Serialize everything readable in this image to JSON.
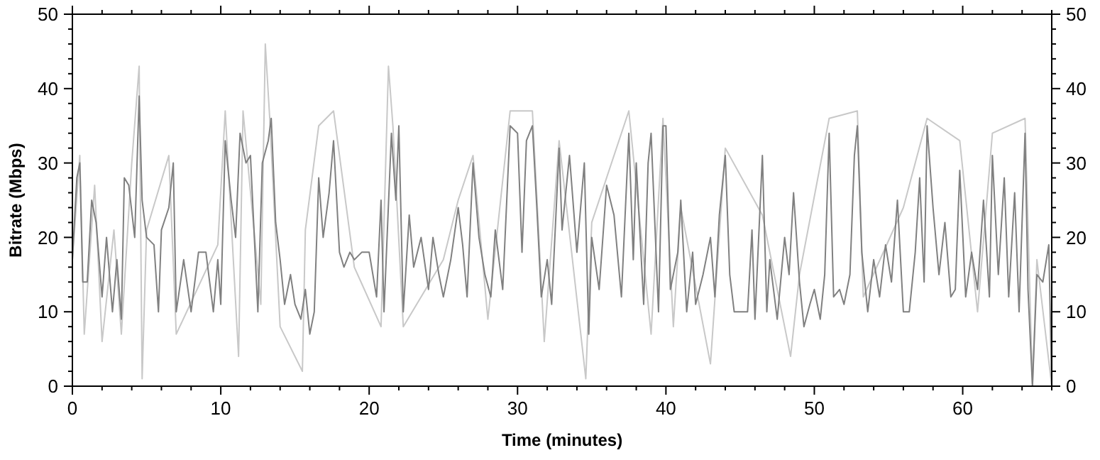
{
  "chart_data": {
    "type": "line",
    "xlabel": "Time (minutes)",
    "ylabel": "Bitrate (Mbps)",
    "xlim": [
      0,
      66
    ],
    "xticks": [
      0,
      10,
      20,
      30,
      40,
      50,
      60
    ],
    "ylim": [
      0,
      50
    ],
    "yticks": [
      0,
      10,
      20,
      30,
      40,
      50
    ],
    "y2lim": [
      0,
      50
    ],
    "y2ticks": [
      0,
      10,
      20,
      30,
      40,
      50
    ],
    "grid": false,
    "series": [
      {
        "color": "#c8c8c8",
        "x": [
          0,
          0.5,
          0.8,
          1.5,
          2,
          2.8,
          3.3,
          4,
          4.5,
          4.7,
          5,
          6.5,
          7,
          9.8,
          10.3,
          11.2,
          11.5,
          12.7,
          13,
          13.3,
          14,
          15.5,
          15.7,
          16.6,
          17.6,
          19,
          20.8,
          21.3,
          21.6,
          22.3,
          25,
          26,
          27,
          28,
          29.5,
          31,
          31.8,
          32.8,
          34.6,
          35,
          37.5,
          39,
          39.8,
          40.5,
          41,
          43,
          44,
          46.5,
          48.4,
          49,
          51,
          52.9,
          53.3,
          56,
          57.6,
          59.8,
          61,
          62,
          64.2,
          64.7,
          65,
          66
        ],
        "values": [
          17,
          31,
          7,
          27,
          6,
          21,
          7,
          30,
          43,
          1,
          21,
          31,
          7,
          19,
          37,
          4,
          37,
          11,
          46,
          36,
          8,
          2,
          21,
          35,
          37,
          16,
          8,
          43,
          35,
          8,
          17,
          25,
          31,
          9,
          37,
          37,
          6,
          33,
          1,
          22,
          37,
          7,
          36,
          8,
          24,
          3,
          32,
          23,
          4,
          15,
          36,
          37,
          12,
          24,
          36,
          33,
          10,
          34,
          36,
          0,
          17,
          0
        ]
      },
      {
        "color": "#808080",
        "x": [
          0,
          0.3,
          0.5,
          0.7,
          1,
          1.3,
          1.6,
          2,
          2.3,
          2.7,
          3,
          3.3,
          3.5,
          3.8,
          4.2,
          4.5,
          4.7,
          5,
          5.5,
          5.8,
          6,
          6.5,
          6.8,
          7,
          7.5,
          8,
          8.5,
          9,
          9.5,
          9.8,
          10,
          10.3,
          10.7,
          11,
          11.3,
          11.7,
          12,
          12.5,
          12.8,
          13.2,
          13.4,
          13.7,
          14,
          14.3,
          14.7,
          15,
          15.4,
          15.7,
          16,
          16.3,
          16.6,
          16.9,
          17.3,
          17.6,
          18,
          18.3,
          18.7,
          19,
          19.5,
          20,
          20.5,
          20.8,
          21,
          21.5,
          21.8,
          22,
          22.3,
          22.7,
          23,
          23.5,
          24,
          24.3,
          24.7,
          25,
          25.5,
          26,
          26.3,
          26.6,
          27,
          27.4,
          27.8,
          28.2,
          28.5,
          29,
          29.5,
          30,
          30.3,
          30.6,
          31,
          31.3,
          31.6,
          32,
          32.3,
          32.8,
          33,
          33.5,
          34,
          34.5,
          34.8,
          35,
          35.5,
          36,
          36.5,
          37,
          37.5,
          37.8,
          38,
          38.5,
          38.8,
          39,
          39.5,
          39.8,
          40,
          40.3,
          40.8,
          41,
          41.4,
          41.8,
          42,
          42.5,
          43,
          43.3,
          43.6,
          44,
          44.3,
          44.6,
          45,
          45.5,
          45.8,
          46,
          46.5,
          46.8,
          47,
          47.5,
          48,
          48.3,
          48.6,
          49,
          49.3,
          49.7,
          50,
          50.4,
          50.7,
          51,
          51.3,
          51.7,
          52,
          52.4,
          52.7,
          52.9,
          53.2,
          53.6,
          54,
          54.4,
          54.8,
          55.2,
          55.6,
          56,
          56.4,
          56.8,
          57.1,
          57.4,
          57.6,
          58,
          58.4,
          58.8,
          59.2,
          59.5,
          59.8,
          60.2,
          60.6,
          61,
          61.4,
          61.8,
          62,
          62.4,
          62.8,
          63.1,
          63.5,
          63.8,
          64.2,
          64.4,
          64.7,
          65,
          65.4,
          65.8,
          66
        ],
        "values": [
          17,
          28,
          30,
          14,
          14,
          25,
          22,
          12,
          20,
          10,
          17,
          9,
          28,
          27,
          20,
          39,
          25,
          20,
          19,
          10,
          21,
          24,
          30,
          10,
          17,
          10,
          18,
          18,
          10,
          17,
          11,
          33,
          25,
          20,
          34,
          30,
          31,
          10,
          30,
          33,
          36,
          22,
          17,
          11,
          15,
          11,
          9,
          13,
          7,
          10,
          28,
          20,
          26,
          33,
          18,
          16,
          18,
          17,
          18,
          18,
          12,
          25,
          10,
          34,
          25,
          35,
          10,
          23,
          16,
          20,
          13,
          20,
          15,
          12,
          17,
          24,
          19,
          12,
          30,
          20,
          15,
          12,
          21,
          13,
          35,
          34,
          18,
          33,
          35,
          24,
          12,
          17,
          11,
          32,
          21,
          31,
          18,
          30,
          7,
          20,
          13,
          27,
          23,
          12,
          34,
          17,
          30,
          11,
          30,
          34,
          10,
          35,
          35,
          13,
          18,
          25,
          10,
          18,
          11,
          15,
          20,
          12,
          23,
          31,
          15,
          10,
          10,
          10,
          21,
          9,
          31,
          10,
          17,
          9,
          20,
          15,
          26,
          14,
          8,
          11,
          13,
          9,
          15,
          34,
          12,
          13,
          11,
          15,
          31,
          35,
          18,
          10,
          17,
          12,
          19,
          14,
          25,
          10,
          10,
          18,
          28,
          14,
          35,
          24,
          15,
          22,
          12,
          13,
          29,
          12,
          18,
          13,
          25,
          12,
          31,
          15,
          28,
          12,
          26,
          10,
          34,
          13,
          0,
          15,
          14,
          19,
          0
        ]
      }
    ]
  }
}
